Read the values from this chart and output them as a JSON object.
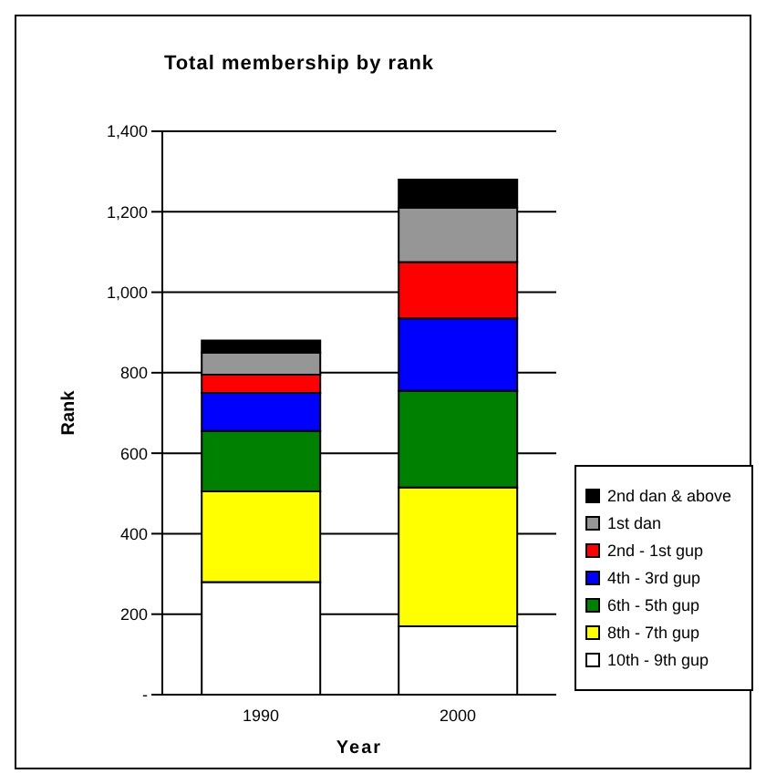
{
  "chart_data": {
    "type": "bar",
    "title": "Total membership by rank",
    "xlabel": "Year",
    "ylabel": "Rank",
    "categories": [
      "1990",
      "2000"
    ],
    "stacked": true,
    "legend": "right",
    "grid": "y",
    "ylim": [
      0,
      1400
    ],
    "yticks": [
      {
        "value": 0,
        "label": "-"
      },
      {
        "value": 200,
        "label": "200"
      },
      {
        "value": 400,
        "label": "400"
      },
      {
        "value": 600,
        "label": "600"
      },
      {
        "value": 800,
        "label": "800"
      },
      {
        "value": 1000,
        "label": "1,000"
      },
      {
        "value": 1200,
        "label": "1,200"
      },
      {
        "value": 1400,
        "label": "1,400"
      }
    ],
    "series": [
      {
        "name": "10th - 9th gup",
        "color": "#ffffff",
        "values": [
          280,
          170
        ]
      },
      {
        "name": "8th - 7th gup",
        "color": "#ffff00",
        "values": [
          225,
          345
        ]
      },
      {
        "name": "6th - 5th gup",
        "color": "#008000",
        "values": [
          150,
          240
        ]
      },
      {
        "name": "4th - 3rd gup",
        "color": "#0000ff",
        "values": [
          95,
          180
        ]
      },
      {
        "name": "2nd - 1st gup",
        "color": "#ff0000",
        "values": [
          45,
          140
        ]
      },
      {
        "name": "1st dan",
        "color": "#969696",
        "values": [
          55,
          135
        ]
      },
      {
        "name": "2nd dan & above",
        "color": "#000000",
        "values": [
          30,
          70
        ]
      }
    ]
  }
}
